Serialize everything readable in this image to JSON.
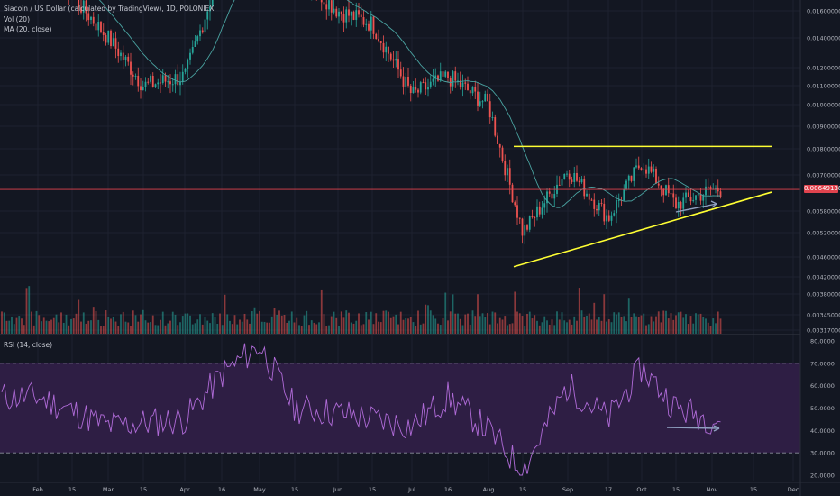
{
  "header": {
    "title": "Siacoin / US Dollar (calculated by TradingView), 1D, POLONIEX",
    "vol_label": "Vol (20)",
    "ma_label": "MA (20, close)",
    "rsi_label": "RSI (14, close)"
  },
  "price_axis": {
    "ticks": [
      "0.01600000",
      "0.01400000",
      "0.01200000",
      "0.01100000",
      "0.01000000",
      "0.00900000",
      "0.00800000",
      "0.00700000",
      "0.00580000",
      "0.00520000",
      "0.00460000",
      "0.00420000",
      "0.00380000",
      "0.00345000",
      "0.00317000"
    ],
    "current_price_label": "0.00649138"
  },
  "rsi_axis": {
    "ticks": [
      "80.0000",
      "70.0000",
      "60.0000",
      "50.0000",
      "40.0000",
      "30.0000",
      "20.0000"
    ]
  },
  "time_axis": {
    "labels": [
      "Feb",
      "15",
      "Mar",
      "15",
      "Apr",
      "16",
      "May",
      "15",
      "Jun",
      "15",
      "Jul",
      "16",
      "Aug",
      "15",
      "Sep",
      "17",
      "Oct",
      "15",
      "Nov",
      "15",
      "Dec"
    ]
  },
  "colors": {
    "background": "#131722",
    "up": "#26a69a",
    "down": "#ef5350",
    "ma_line": "#4aa3a1",
    "trendline": "#ffff33",
    "arrow": "#8fa0c0",
    "price_line": "#e0434e",
    "rsi_line": "#b06bd8",
    "rsi_band": "#2e1e44"
  },
  "chart_data": {
    "type": "candlestick",
    "title": "Siacoin / US Dollar (calculated by TradingView), 1D, POLONIEX",
    "indicators": [
      "Vol (20)",
      "MA (20, close)",
      "RSI (14, close)"
    ],
    "time_axis_labels": [
      "Feb",
      "15",
      "Mar",
      "15",
      "Apr",
      "16",
      "May",
      "15",
      "Jun",
      "15",
      "Jul",
      "16",
      "Aug",
      "15",
      "Sep",
      "17",
      "Oct",
      "15",
      "Nov",
      "15",
      "Dec"
    ],
    "approx_close_path": [
      {
        "label": "Feb",
        "close": 0.021
      },
      {
        "label": "Mar",
        "close": 0.014
      },
      {
        "label": "Mar 15",
        "close": 0.011
      },
      {
        "label": "Apr",
        "close": 0.0115
      },
      {
        "label": "Apr 16",
        "close": 0.02
      },
      {
        "label": "May",
        "close": 0.023
      },
      {
        "label": "Jun",
        "close": 0.016
      },
      {
        "label": "Jun 15",
        "close": 0.015
      },
      {
        "label": "Jul",
        "close": 0.0105
      },
      {
        "label": "Jul 16",
        "close": 0.0115
      },
      {
        "label": "Aug",
        "close": 0.01
      },
      {
        "label": "Aug 15",
        "close": 0.0052
      },
      {
        "label": "Sep",
        "close": 0.0072
      },
      {
        "label": "Sep 17",
        "close": 0.0056
      },
      {
        "label": "Oct",
        "close": 0.0075
      },
      {
        "label": "Oct 15",
        "close": 0.006
      },
      {
        "label": "Nov",
        "close": 0.00649138
      }
    ],
    "current_price": 0.00649138,
    "trendlines": [
      {
        "name": "resistance",
        "from": {
          "label": "Aug 15",
          "price": 0.0081
        },
        "to": {
          "label": "Nov 15",
          "price": 0.0081
        }
      },
      {
        "name": "support",
        "from": {
          "label": "Aug 15",
          "price": 0.0044
        },
        "to": {
          "label": "Nov 15",
          "price": 0.0064
        }
      }
    ],
    "rsi": {
      "overbought": 70,
      "oversold": 30,
      "ylim": [
        20,
        80
      ],
      "approx_path": [
        {
          "label": "Feb",
          "value": 55
        },
        {
          "label": "Mar",
          "value": 42
        },
        {
          "label": "Apr",
          "value": 45
        },
        {
          "label": "Apr 16",
          "value": 65
        },
        {
          "label": "May",
          "value": 78
        },
        {
          "label": "May 15",
          "value": 50
        },
        {
          "label": "Jun",
          "value": 48
        },
        {
          "label": "Jul",
          "value": 42
        },
        {
          "label": "Jul 16",
          "value": 55
        },
        {
          "label": "Aug",
          "value": 40
        },
        {
          "label": "Aug 15",
          "value": 22
        },
        {
          "label": "Sep",
          "value": 60
        },
        {
          "label": "Sep 17",
          "value": 45
        },
        {
          "label": "Oct",
          "value": 68
        },
        {
          "label": "Oct 15",
          "value": 50
        },
        {
          "label": "Nov",
          "value": 45
        }
      ]
    }
  }
}
